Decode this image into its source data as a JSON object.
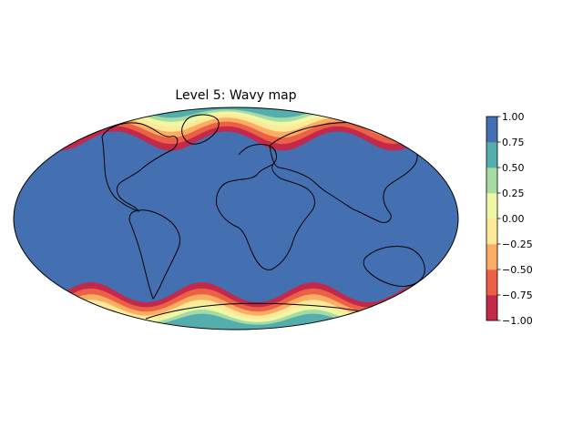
{
  "title": "Level 5: Wavy map",
  "projection": "mollweide",
  "colormap": "Spectral",
  "levels": [
    -1.0,
    -0.75,
    -0.5,
    -0.25,
    0.0,
    0.25,
    0.5,
    0.75,
    1.0
  ],
  "band_colors": [
    "#c2294a",
    "#ec6145",
    "#fbad63",
    "#fee999",
    "#eef8a5",
    "#a6dca4",
    "#54aead",
    "#4470b1"
  ],
  "coastline_color": "#000000",
  "colorbar": {
    "ticks": [
      "−1.00",
      "−0.75",
      "−0.50",
      "−0.25",
      "0.00",
      "0.25",
      "0.50",
      "0.75",
      "1.00"
    ]
  },
  "field": {
    "description_of_pattern": "value 1.0 across tropics and mid-latitudes; drops to -1.0 toward both poles with a wavy (longitude-modulated) boundary",
    "north_transition_lat_range": [
      40,
      72
    ],
    "south_transition_lat_range": [
      -38,
      -66
    ],
    "wave_number": 4
  }
}
